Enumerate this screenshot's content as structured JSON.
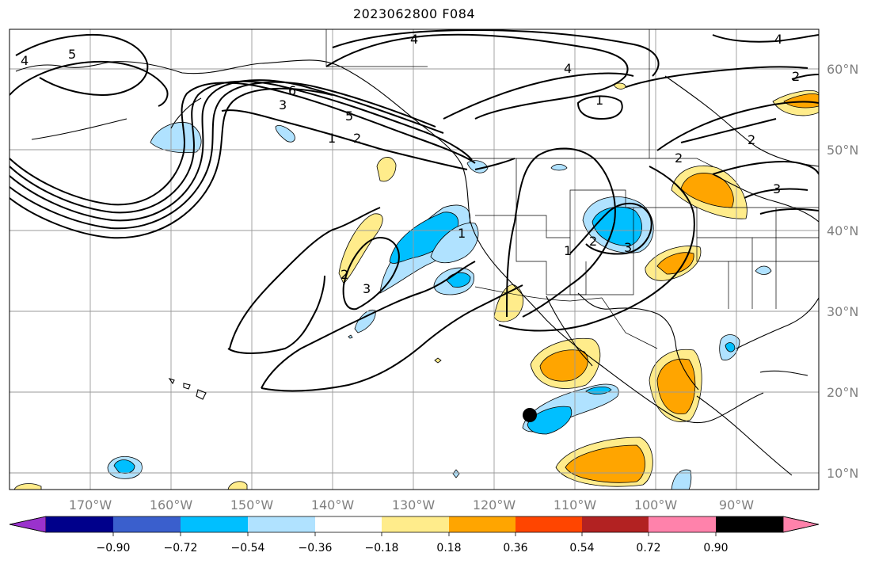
{
  "title": "2023062800 F084",
  "map": {
    "lat_labels": [
      "60°N",
      "50°N",
      "40°N",
      "30°N",
      "20°N",
      "10°N"
    ],
    "lon_labels": [
      "170°W",
      "160°W",
      "150°W",
      "140°W",
      "130°W",
      "120°W",
      "110°W",
      "100°W",
      "90°W"
    ]
  },
  "colorbar": {
    "ticks": [
      "−0.90",
      "−0.72",
      "−0.54",
      "−0.36",
      "−0.18",
      "0.18",
      "0.36",
      "0.54",
      "0.72",
      "0.90"
    ],
    "colors": [
      "#9a32cd",
      "#00008b",
      "#3a5fcd",
      "#00bfff",
      "#b0e2ff",
      "#ffffff",
      "#ffec8b",
      "#ffa500",
      "#ff4500",
      "#b22222",
      "#ff82ab"
    ]
  },
  "contour_labels": [
    "4",
    "5",
    "4",
    "4",
    "4",
    "6",
    "5",
    "3",
    "2",
    "1",
    "1",
    "2",
    "2",
    "1",
    "2",
    "3",
    "1",
    "2",
    "3",
    "2",
    "3"
  ]
}
